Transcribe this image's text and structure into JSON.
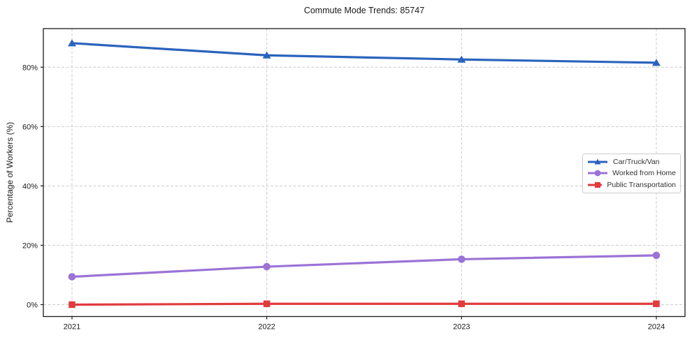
{
  "figure": {
    "background": "#ffffff"
  },
  "chart_data": {
    "type": "line",
    "title": "Commute Mode Trends: 85747",
    "xlabel": "",
    "ylabel": "Percentage of Workers (%)",
    "categories": [
      "2021",
      "2022",
      "2023",
      "2024"
    ],
    "series": [
      {
        "name": "Car/Truck/Van",
        "marker": "triangle",
        "color": "#2a63bd",
        "values": [
          88.1,
          84.0,
          82.6,
          81.5
        ]
      },
      {
        "name": "Worked from Home",
        "marker": "circle",
        "color": "#9b73d6",
        "values": [
          9.4,
          12.8,
          15.3,
          16.6
        ]
      },
      {
        "name": "Public Transportation",
        "marker": "square",
        "color": "#e23a3d",
        "values": [
          0.0,
          0.3,
          0.3,
          0.3
        ]
      }
    ],
    "yticks": [
      0,
      20,
      40,
      60,
      80
    ],
    "ytick_labels": [
      "0%",
      "20%",
      "40%",
      "60%",
      "80%"
    ],
    "ylim": [
      -4,
      93
    ],
    "grid": true,
    "grid_style": "dashed",
    "legend_position": "center-right"
  },
  "colors": {
    "grid": "#cccccc",
    "axis": "#1a1a1a",
    "tick_text": "#1a1a1a",
    "legend_border": "#cccccc",
    "legend_text": "#333333"
  }
}
